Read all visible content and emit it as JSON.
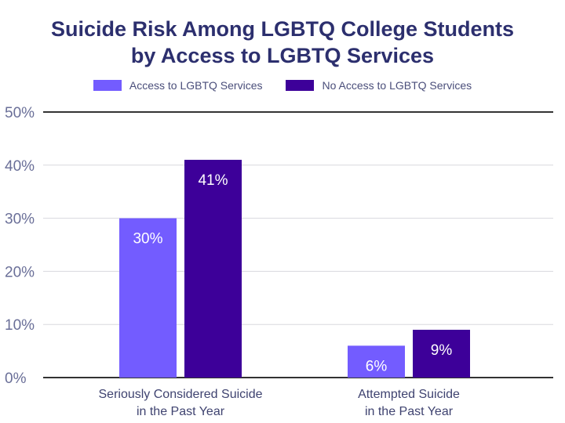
{
  "chart_data": {
    "type": "bar",
    "title_lines": [
      "Suicide Risk Among LGBTQ College Students",
      "by Access to LGBTQ Services"
    ],
    "categories": [
      [
        "Seriously Considered Suicide",
        "in the Past Year"
      ],
      [
        "Attempted Suicide",
        "in the Past Year"
      ]
    ],
    "series": [
      {
        "name": "Access to LGBTQ Services",
        "color": "#735cff",
        "values": [
          30,
          6
        ],
        "labels": [
          "30%",
          "6%"
        ]
      },
      {
        "name": "No Access to LGBTQ Services",
        "color": "#3d0099",
        "values": [
          41,
          9
        ],
        "labels": [
          "41%",
          "9%"
        ]
      }
    ],
    "yticks": [
      "0%",
      "10%",
      "20%",
      "30%",
      "40%",
      "50%"
    ],
    "ylim": [
      0,
      50
    ],
    "grid": true,
    "legend": "top-center"
  }
}
